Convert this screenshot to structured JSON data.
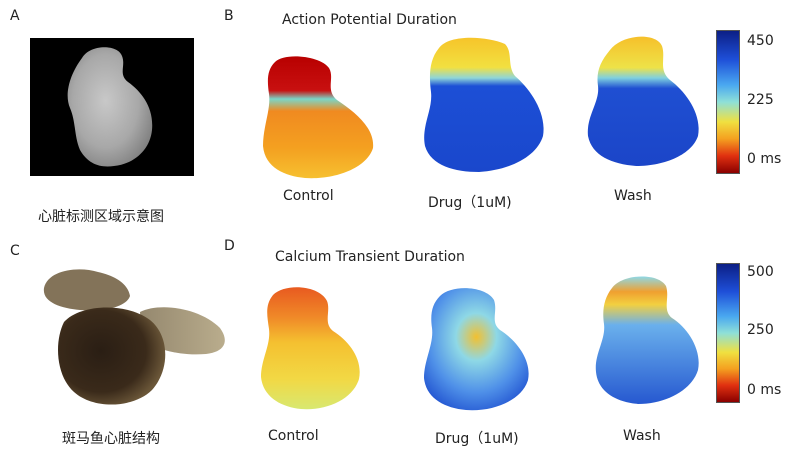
{
  "panels": {
    "A": {
      "letter": "A",
      "caption": "心脏标测区域示意图"
    },
    "B": {
      "letter": "B",
      "title": "Action Potential Duration",
      "conditions": [
        "Control",
        "Drug（1uM)",
        "Wash"
      ],
      "colorbar": {
        "max": "450",
        "mid": "225",
        "min": "0 ms"
      }
    },
    "C": {
      "letter": "C",
      "caption": "斑马鱼心脏结构"
    },
    "D": {
      "letter": "D",
      "title": "Calcium Transient Duration",
      "conditions": [
        "Control",
        "Drug（1uM)",
        "Wash"
      ],
      "colorbar": {
        "max": "500",
        "mid": "250",
        "min": "0 ms"
      }
    }
  },
  "colors": {
    "map_red": "#b00000",
    "map_orange": "#f5a020",
    "map_yellow": "#f5d020",
    "map_cyan": "#6fd6e8",
    "map_blue": "#1e4fd8",
    "map_darkblue": "#0c2590"
  }
}
